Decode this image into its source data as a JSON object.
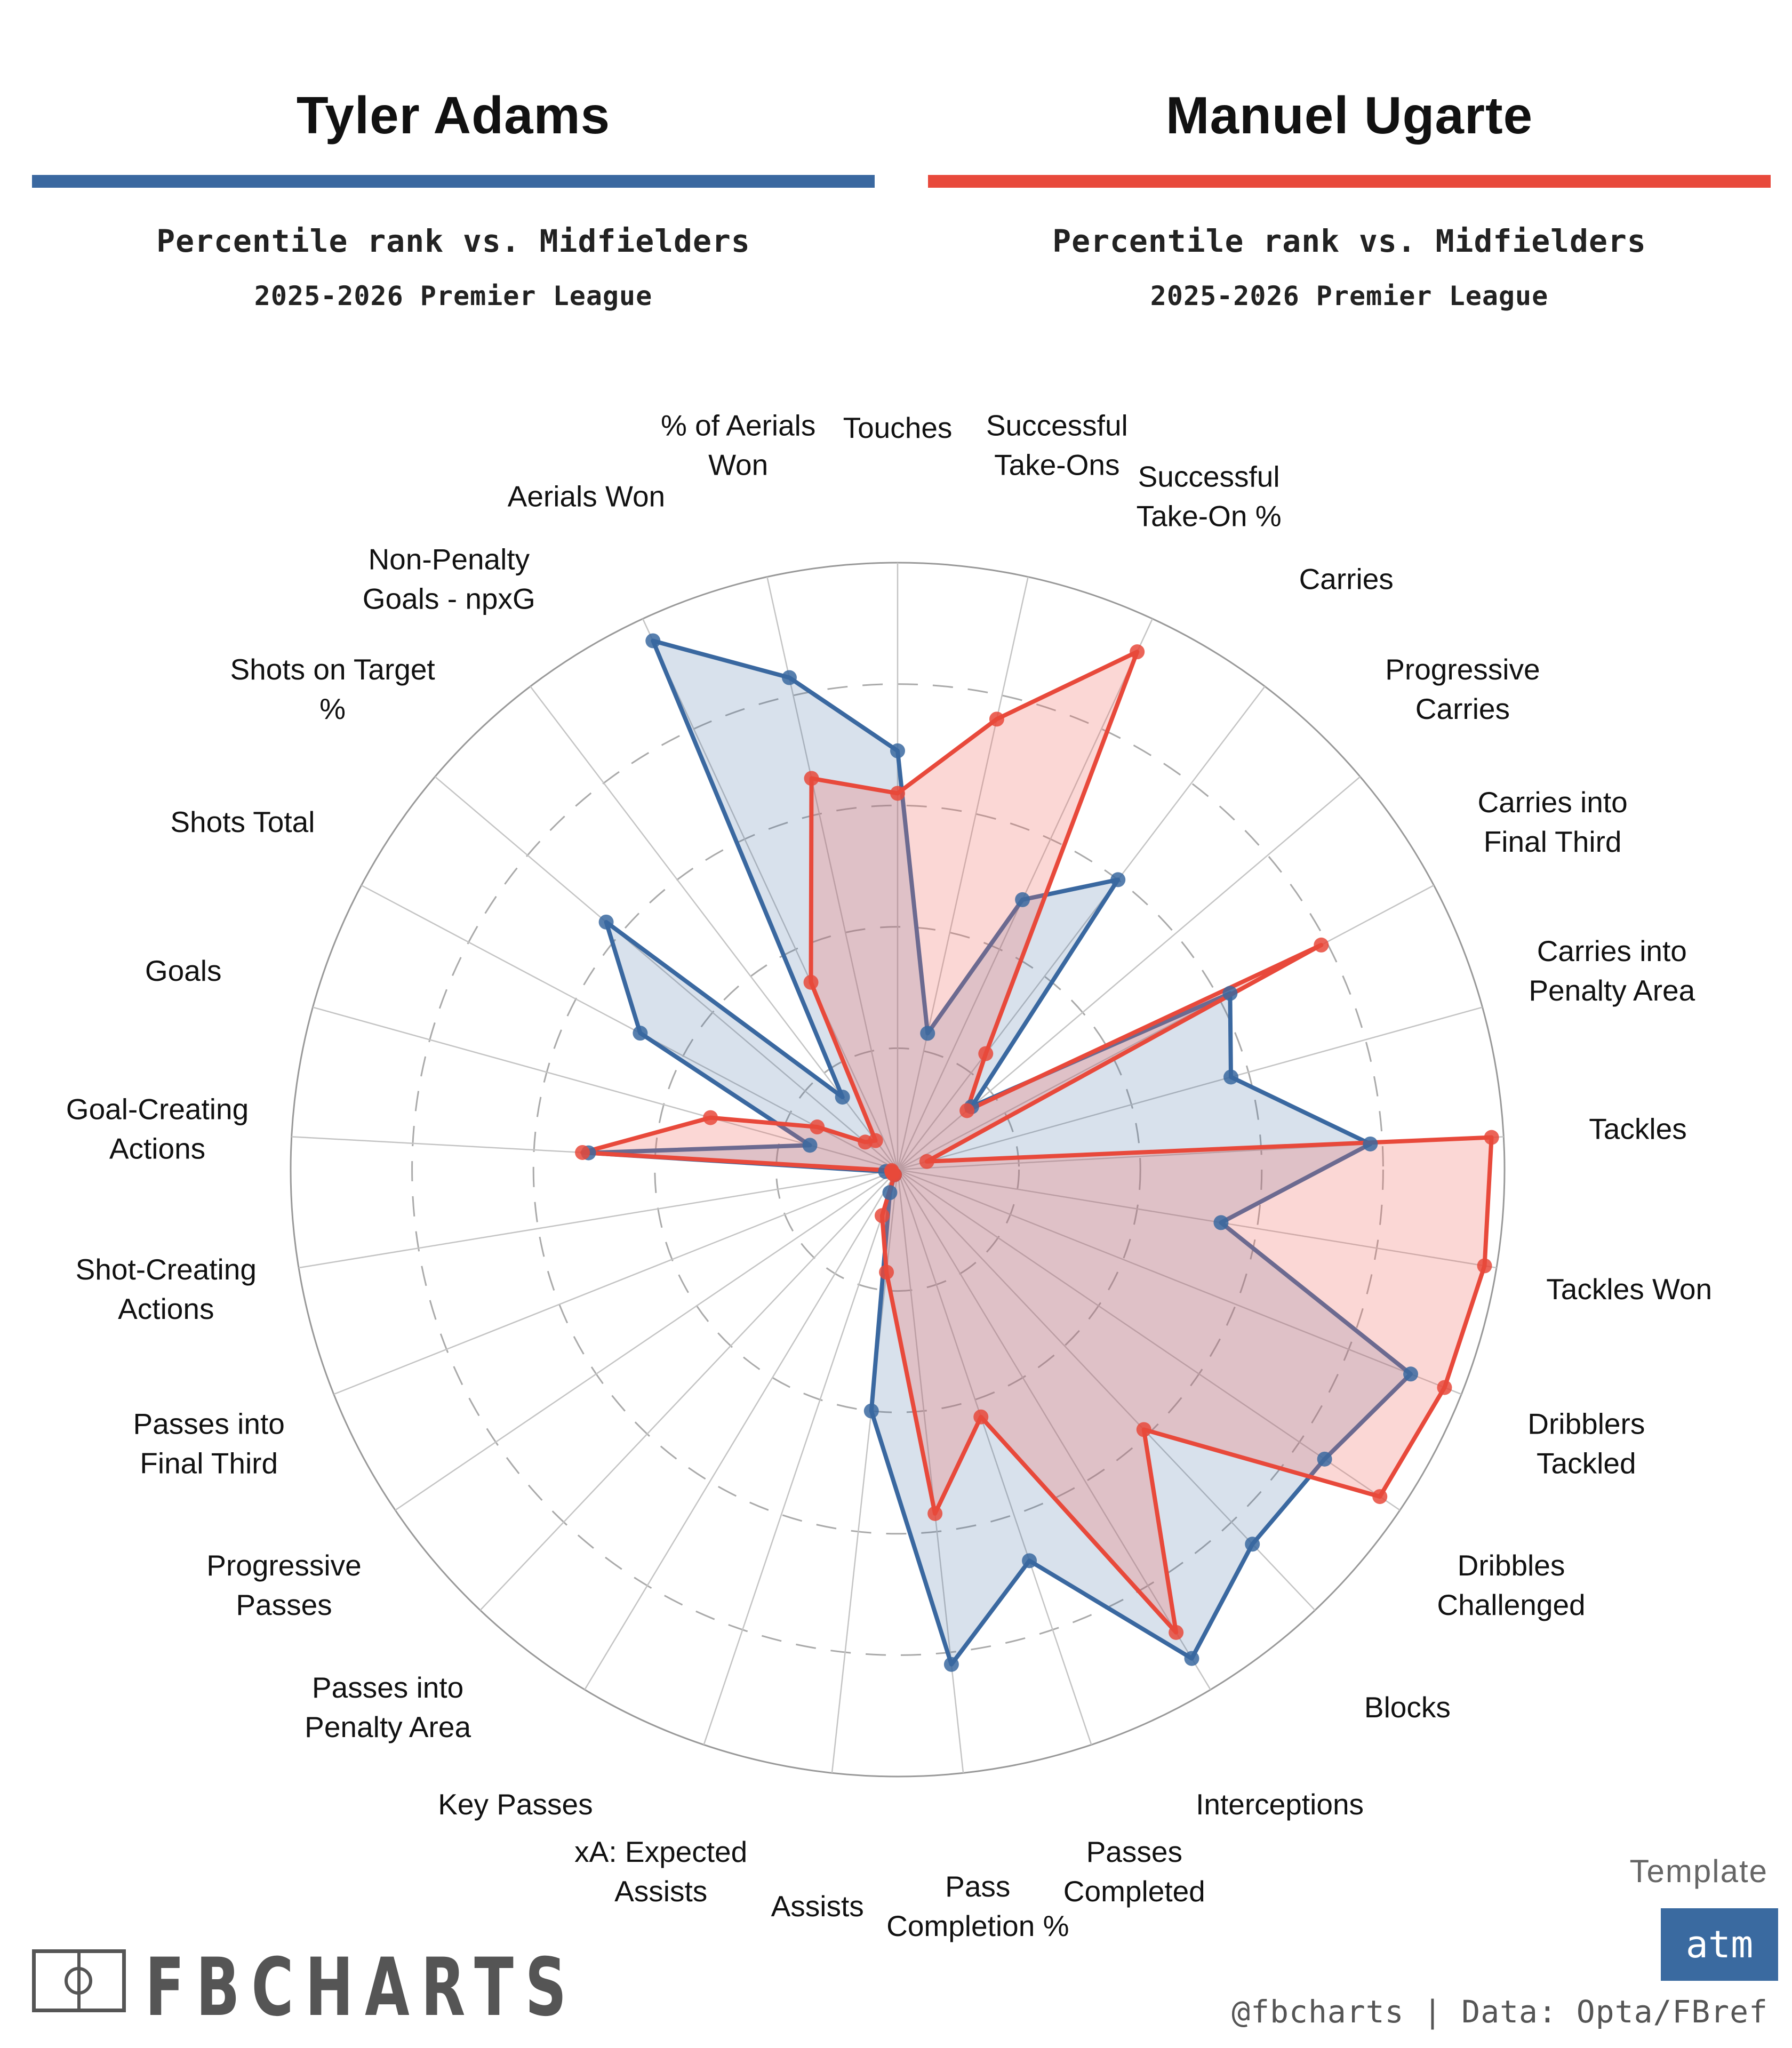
{
  "header": {
    "left": {
      "name": "Tyler Adams",
      "subtitle": "Percentile rank vs. Midfielders",
      "league": "2025-2026 Premier League",
      "color": "#3a68a0"
    },
    "right": {
      "name": "Manuel Ugarte",
      "subtitle": "Percentile rank vs. Midfielders",
      "league": "2025-2026 Premier League",
      "color": "#e8493b"
    }
  },
  "chart_data": {
    "type": "radar",
    "range": [
      0,
      100
    ],
    "rings": [
      20,
      40,
      60,
      80,
      100
    ],
    "axes": [
      "Touches",
      "Successful Take-Ons",
      "Successful Take-On %",
      "Carries",
      "Progressive Carries",
      "Carries into Final Third",
      "Carries into Penalty Area",
      "Tackles",
      "Tackles Won",
      "Dribblers Tackled",
      "Dribbles Challenged",
      "Blocks",
      "Interceptions",
      "Passes Completed",
      "Pass Completion %",
      "Assists",
      "xA: Expected Assists",
      "Key Passes",
      "Passes into Penalty Area",
      "Progressive Passes",
      "Passes into Final Third",
      "Shot-Creating Actions",
      "Goal-Creating Actions",
      "Goals",
      "Shots Total",
      "Shots on Target %",
      "Non-Penalty Goals - npxG",
      "Aerials Won",
      "% of Aerials Won"
    ],
    "series": [
      {
        "name": "Tyler Adams",
        "color": "#3a68a0",
        "values": [
          69,
          23,
          49,
          60,
          16,
          62,
          57,
          78,
          54,
          91,
          85,
          85,
          94,
          68,
          82,
          40,
          4,
          1,
          1,
          1,
          1,
          2,
          51,
          15,
          48,
          63,
          15,
          96,
          83
        ]
      },
      {
        "name": "Manuel Ugarte",
        "color": "#e8493b",
        "values": [
          62,
          76,
          94,
          24,
          15,
          79,
          5,
          98,
          98,
          97,
          96,
          59,
          89,
          43,
          57,
          17,
          8,
          1,
          1,
          1,
          1,
          1,
          52,
          32,
          15,
          7,
          6,
          34,
          66
        ]
      }
    ]
  },
  "axis_label_lines": [
    [
      "Touches"
    ],
    [
      "Successful",
      "Take-Ons"
    ],
    [
      "Successful",
      "Take-On %"
    ],
    [
      "Carries"
    ],
    [
      "Progressive",
      "Carries"
    ],
    [
      "Carries into",
      "Final Third"
    ],
    [
      "Carries into",
      "Penalty Area"
    ],
    [
      "Tackles"
    ],
    [
      "Tackles Won"
    ],
    [
      "Dribblers",
      "Tackled"
    ],
    [
      "Dribbles",
      "Challenged"
    ],
    [
      "Blocks"
    ],
    [
      "Interceptions"
    ],
    [
      "Passes",
      "Completed"
    ],
    [
      "Pass",
      "Completion %"
    ],
    [
      "Assists"
    ],
    [
      "xA: Expected",
      "Assists"
    ],
    [
      "Key Passes"
    ],
    [
      "Passes into",
      "Penalty Area"
    ],
    [
      "Progressive",
      "Passes"
    ],
    [
      "Passes into",
      "Final Third"
    ],
    [
      "Shot-Creating",
      "Actions"
    ],
    [
      "Goal-Creating",
      "Actions"
    ],
    [
      "Goals"
    ],
    [
      "Shots Total"
    ],
    [
      "Shots on Target",
      "%"
    ],
    [
      "Non-Penalty",
      "Goals - npxG"
    ],
    [
      "Aerials Won"
    ],
    [
      "% of Aerials",
      "Won"
    ]
  ],
  "footer": {
    "template_label": "Template",
    "template_badge": "atm",
    "credit": "@fbcharts | Data: Opta/FBref",
    "logo": "FBCHARTS"
  }
}
